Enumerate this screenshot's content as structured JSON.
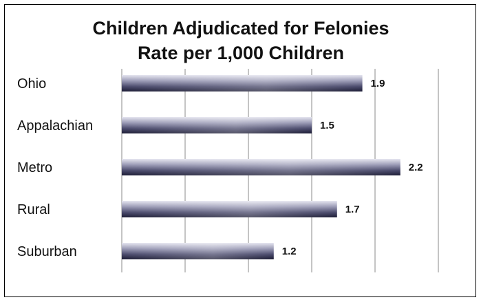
{
  "chart_data": {
    "type": "bar",
    "orientation": "horizontal",
    "title": "Children Adjudicated for Felonies",
    "subtitle": "Rate per 1,000 Children",
    "categories": [
      "Ohio",
      "Appalachian",
      "Metro",
      "Rural",
      "Suburban"
    ],
    "values": [
      1.9,
      1.5,
      2.2,
      1.7,
      1.2
    ],
    "data_labels": [
      "1.9",
      "1.5",
      "2.2",
      "1.7",
      "1.2"
    ],
    "xlim": [
      0,
      2.5
    ],
    "grid": true,
    "legend": "none",
    "xlabel": "",
    "ylabel": "",
    "colors": {
      "bar_dark": "#1c1c35",
      "bar_mid": "#5a5a7e",
      "bar_light": "#e6e6f0",
      "grid": "#8a8a8a",
      "frame": "#000000"
    }
  }
}
